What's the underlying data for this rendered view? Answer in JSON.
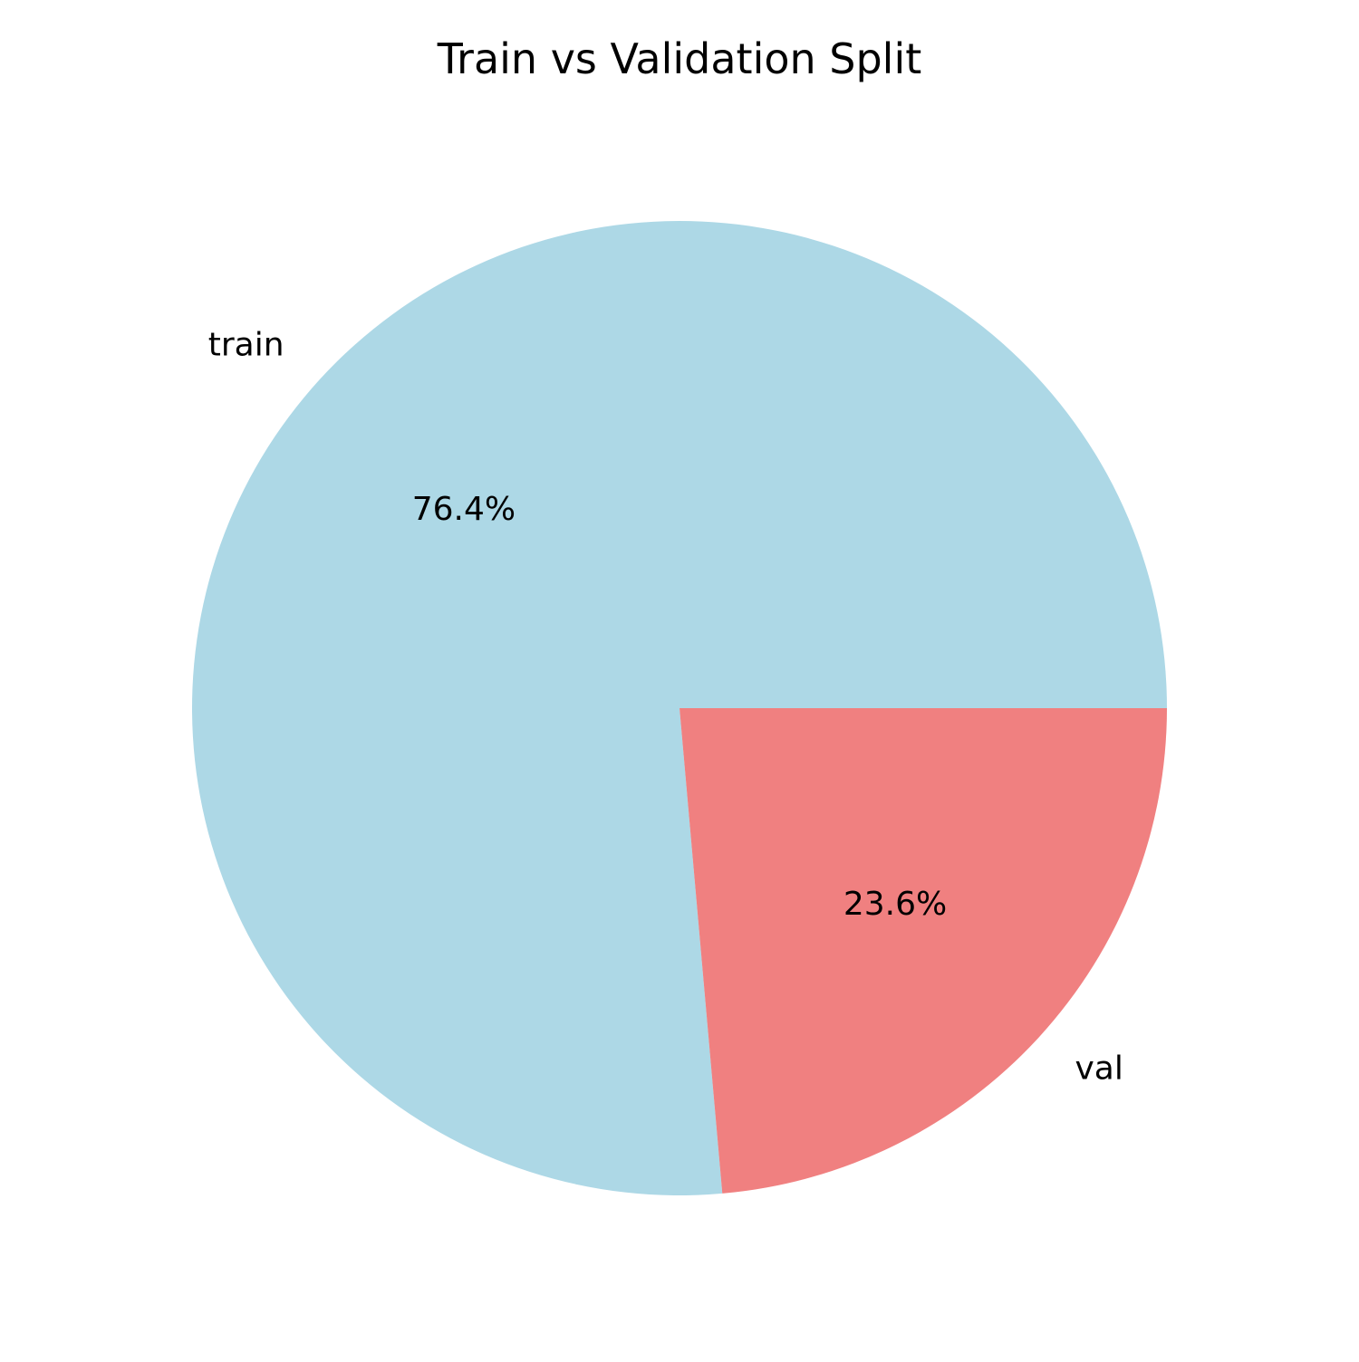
{
  "chart_data": {
    "type": "pie",
    "title": "Train vs Validation Split",
    "labels": [
      "train",
      "val"
    ],
    "values": [
      76.4,
      23.6
    ],
    "value_labels": [
      "76.4%",
      "23.6%"
    ],
    "colors": [
      "#add8e6",
      "#f08080"
    ],
    "start_angle_deg": 0,
    "direction": "counterclockwise",
    "legend": "none"
  }
}
